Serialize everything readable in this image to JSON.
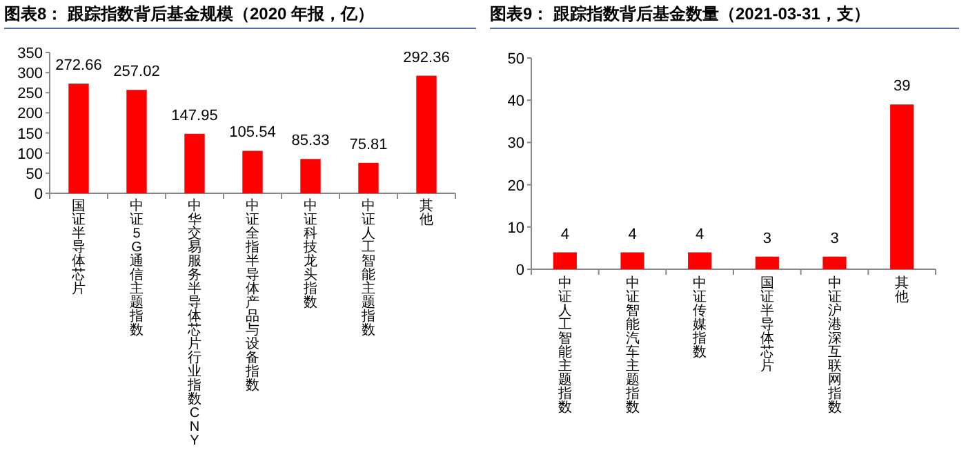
{
  "chart_data": [
    {
      "type": "bar",
      "title": "图表8：  跟踪指数背后基金规模（2020 年报，亿）",
      "categories": [
        "国证半导体芯片",
        "中证5G通信主题指数",
        "中华交易服务半导体芯片行业指数CNY",
        "中证全指半导体产品与设备指数",
        "中证科技龙头指数",
        "中证人工智能主题指数",
        "其他"
      ],
      "series": [
        {
          "color": "#ff0000",
          "values": [
            272.66,
            257.02,
            147.95,
            105.54,
            85.33,
            75.81,
            292.36
          ]
        }
      ],
      "ylim": [
        0,
        350
      ],
      "yticks": [
        0,
        50,
        100,
        150,
        200,
        250,
        300,
        350
      ],
      "data_labels": true
    },
    {
      "type": "bar",
      "title": "图表9：  跟踪指数背后基金数量（2021-03-31，支）",
      "categories": [
        "中证人工智能主题指数",
        "中证智能汽车主题指数",
        "中证传媒指数",
        "国证半导体芯片",
        "中证沪港深互联网指数",
        "其他"
      ],
      "series": [
        {
          "color": "#ff0000",
          "values": [
            4,
            4,
            4,
            3,
            3,
            39
          ]
        }
      ],
      "ylim": [
        0,
        50
      ],
      "yticks": [
        0,
        10,
        20,
        30,
        40,
        50
      ],
      "data_labels": true
    }
  ]
}
